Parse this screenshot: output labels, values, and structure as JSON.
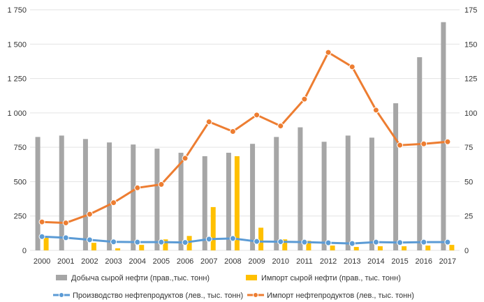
{
  "chart_data": {
    "type": "bar",
    "categories": [
      "2000",
      "2001",
      "2002",
      "2003",
      "2004",
      "2005",
      "2006",
      "2007",
      "2008",
      "2009",
      "2010",
      "2011",
      "2012",
      "2013",
      "2014",
      "2015",
      "2016",
      "2017"
    ],
    "y_left": {
      "min": 0,
      "max": 1750,
      "ticks": [
        0,
        250,
        500,
        750,
        1000,
        1250,
        1500,
        1750
      ],
      "tick_labels": [
        "0",
        "250",
        "500",
        "750",
        "1 000",
        "1 250",
        "1 500",
        "1 750"
      ]
    },
    "y_right": {
      "min": 0,
      "max": 175,
      "ticks": [
        0,
        25,
        50,
        75,
        100,
        125,
        150,
        175
      ],
      "tick_labels": [
        "0",
        "25",
        "50",
        "75",
        "100",
        "125",
        "150",
        "175"
      ]
    },
    "grid": true,
    "legend_position": "bottom",
    "series": [
      {
        "name": "Добыча сырой нефти (прав.,тыс. тонн)",
        "kind": "bar",
        "axis": "right",
        "color": "#a6a6a6",
        "values": [
          82.5,
          83.5,
          81,
          78.5,
          77,
          74,
          71,
          68.5,
          71,
          77.5,
          82.5,
          89.5,
          79,
          83.5,
          82,
          107,
          140.5,
          166
        ]
      },
      {
        "name": "Импорт сырой нефти (прав., тыс. тонн)",
        "kind": "bar",
        "axis": "right",
        "color": "#ffc000",
        "values": [
          9.5,
          0,
          5.5,
          1.5,
          4,
          8,
          10.5,
          31.5,
          68.5,
          16.5,
          8,
          7,
          3.5,
          2.5,
          3,
          3,
          3.5,
          4
        ]
      },
      {
        "name": "Производство нефтепродуктов (лев., тыс. тонн)",
        "kind": "line",
        "axis": "left",
        "color": "#5b9bd5",
        "values": [
          100,
          92,
          77,
          62,
          60,
          60,
          58,
          82,
          87,
          65,
          63,
          60,
          55,
          50,
          60,
          57,
          60,
          60
        ]
      },
      {
        "name": "Импорт нефтепродуктов (лев., тыс. тонн)",
        "kind": "line",
        "axis": "left",
        "color": "#ed7d31",
        "values": [
          207,
          200,
          263,
          347,
          455,
          480,
          670,
          935,
          865,
          985,
          905,
          1100,
          1440,
          1335,
          1020,
          765,
          775,
          790
        ]
      }
    ]
  }
}
